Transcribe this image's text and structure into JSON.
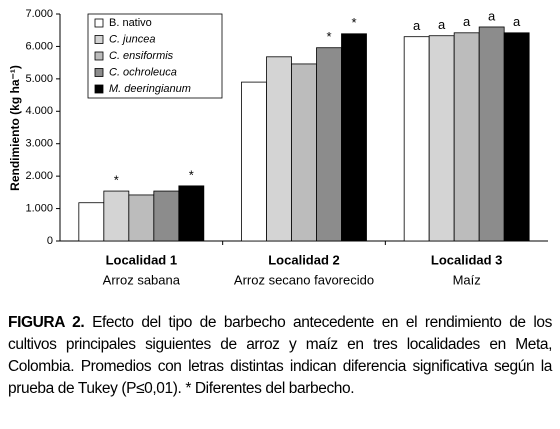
{
  "chart_data": {
    "type": "bar",
    "ylabel": "Rendimiento (kg ha⁻¹)",
    "categories": [
      "Localidad 1",
      "Localidad 2",
      "Localidad 3"
    ],
    "category_subtitles": [
      "Arroz sabana",
      "Arroz secano favorecido",
      "Maíz"
    ],
    "series": [
      {
        "name": "B. nativo",
        "color": "#ffffff",
        "values": [
          1180,
          4900,
          6300
        ],
        "labels": [
          null,
          null,
          "a"
        ]
      },
      {
        "name": "C. juncea",
        "color": "#d4d4d4",
        "values": [
          1540,
          5680,
          6330
        ],
        "labels": [
          "*",
          null,
          "a"
        ]
      },
      {
        "name": "C. ensiformis",
        "color": "#bcbcbc",
        "values": [
          1420,
          5460,
          6420
        ],
        "labels": [
          null,
          null,
          "a"
        ]
      },
      {
        "name": "C. ochroleuca",
        "color": "#8c8c8c",
        "values": [
          1540,
          5960,
          6600
        ],
        "labels": [
          null,
          "*",
          "a"
        ]
      },
      {
        "name": "M. deeringianum",
        "color": "#000000",
        "values": [
          1700,
          6390,
          6420
        ],
        "labels": [
          "*",
          "*",
          "a"
        ]
      }
    ],
    "ylim": [
      0,
      7000
    ],
    "yticks": [
      0,
      {
        "value": 1000,
        "label": "1.000"
      },
      {
        "value": 2000,
        "label": "2.000"
      },
      {
        "value": 3000,
        "label": "3.000"
      },
      {
        "value": 4000,
        "label": "4.000"
      },
      {
        "value": 5000,
        "label": "5.000"
      },
      {
        "value": 6000,
        "label": "6.000"
      },
      {
        "value": 7000,
        "label": "7.000"
      }
    ],
    "legend": "upper left"
  },
  "caption": {
    "label": "FIGURA 2.",
    "text": "Efecto del tipo de barbecho antecedente en el rendimiento de los cultivos principales siguientes de arroz y maíz en tres localidades en Meta, Colombia. Promedios con letras distintas indican diferencia significativa según la prueba de Tukey (P≤0,01). * Diferentes del barbecho."
  }
}
